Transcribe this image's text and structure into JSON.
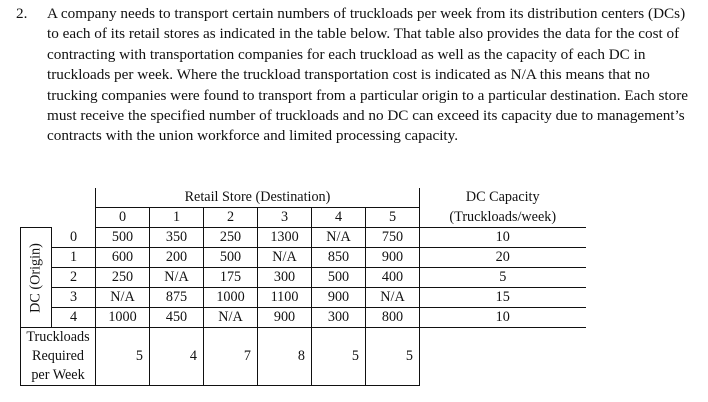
{
  "problem": {
    "number": "2.",
    "text": "A company needs to transport certain numbers of truckloads per week from its distribution centers (DCs) to each of its retail stores as indicated in the table below.  That table also provides the data for the cost of contracting with transportation companies for each truckload as well as the capacity of each DC in truckloads per week.  Where the truckload transportation cost is indicated as N/A this means that no trucking companies were found to transport from a particular origin to a particular destination.  Each store must receive the specified number of truckloads and no DC can exceed its capacity due to management’s contracts with the union workforce and limited processing capacity."
  },
  "table": {
    "destination_header": "Retail Store (Destination)",
    "capacity_header_line1": "DC Capacity",
    "capacity_header_line2": "(Truckloads/week)",
    "origin_header": "DC (Origin)",
    "stores": [
      "0",
      "1",
      "2",
      "3",
      "4",
      "5"
    ],
    "rows": [
      {
        "dc": "0",
        "costs": [
          "500",
          "350",
          "250",
          "1300",
          "N/A",
          "750"
        ],
        "capacity": "10"
      },
      {
        "dc": "1",
        "costs": [
          "600",
          "200",
          "500",
          "N/A",
          "850",
          "900"
        ],
        "capacity": "20"
      },
      {
        "dc": "2",
        "costs": [
          "250",
          "N/A",
          "175",
          "300",
          "500",
          "400"
        ],
        "capacity": "5"
      },
      {
        "dc": "3",
        "costs": [
          "N/A",
          "875",
          "1000",
          "1100",
          "900",
          "N/A"
        ],
        "capacity": "15"
      },
      {
        "dc": "4",
        "costs": [
          "1000",
          "450",
          "N/A",
          "900",
          "300",
          "800"
        ],
        "capacity": "10"
      }
    ],
    "required_label_line1": "Truckloads",
    "required_label_line2": "Required",
    "required_label_line3": "per Week",
    "required": [
      "5",
      "4",
      "7",
      "8",
      "5",
      "5"
    ]
  }
}
